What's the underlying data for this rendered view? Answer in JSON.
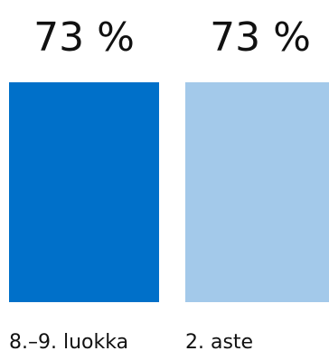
{
  "chart_data": {
    "type": "bar",
    "categories": [
      "8.–9. luokka",
      "2. aste"
    ],
    "values": [
      73,
      73
    ],
    "value_labels": [
      "73 %",
      "73 %"
    ],
    "colors": [
      "#0070c9",
      "#a3c9ea"
    ],
    "ylim": [
      0,
      100
    ],
    "grid": false,
    "legend": "none"
  }
}
